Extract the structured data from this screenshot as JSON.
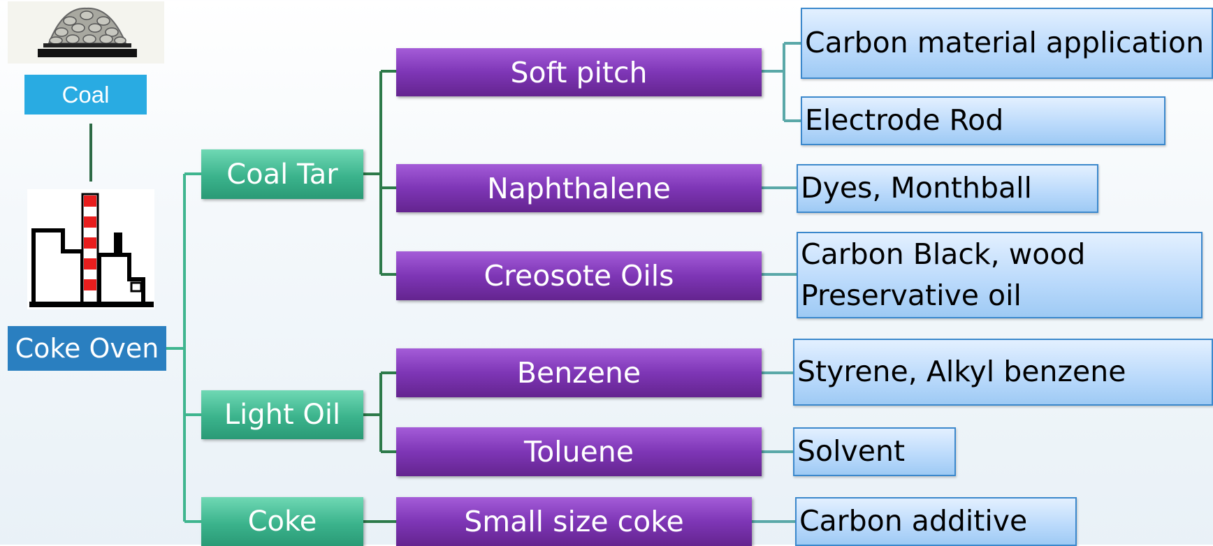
{
  "sources": {
    "coal": "Coal",
    "coke_oven": "Coke Oven"
  },
  "products": [
    {
      "label": "Coal Tar",
      "derivatives": [
        {
          "label": "Soft pitch",
          "uses": [
            [
              "Carbon material application"
            ],
            [
              "Electrode Rod"
            ]
          ]
        },
        {
          "label": "Naphthalene",
          "uses": [
            [
              "Dyes, Monthball"
            ]
          ]
        },
        {
          "label": "Creosote Oils",
          "uses": [
            [
              "Carbon Black, wood",
              "Preservative oil"
            ]
          ]
        }
      ]
    },
    {
      "label": "Light Oil",
      "derivatives": [
        {
          "label": "Benzene",
          "uses": [
            [
              "Styrene, Alkyl benzene"
            ]
          ]
        },
        {
          "label": "Toluene",
          "uses": [
            [
              "Solvent"
            ]
          ]
        }
      ]
    },
    {
      "label": "Coke",
      "derivatives": [
        {
          "label": "Small size coke",
          "uses": [
            [
              "Carbon additive"
            ]
          ]
        }
      ]
    }
  ]
}
